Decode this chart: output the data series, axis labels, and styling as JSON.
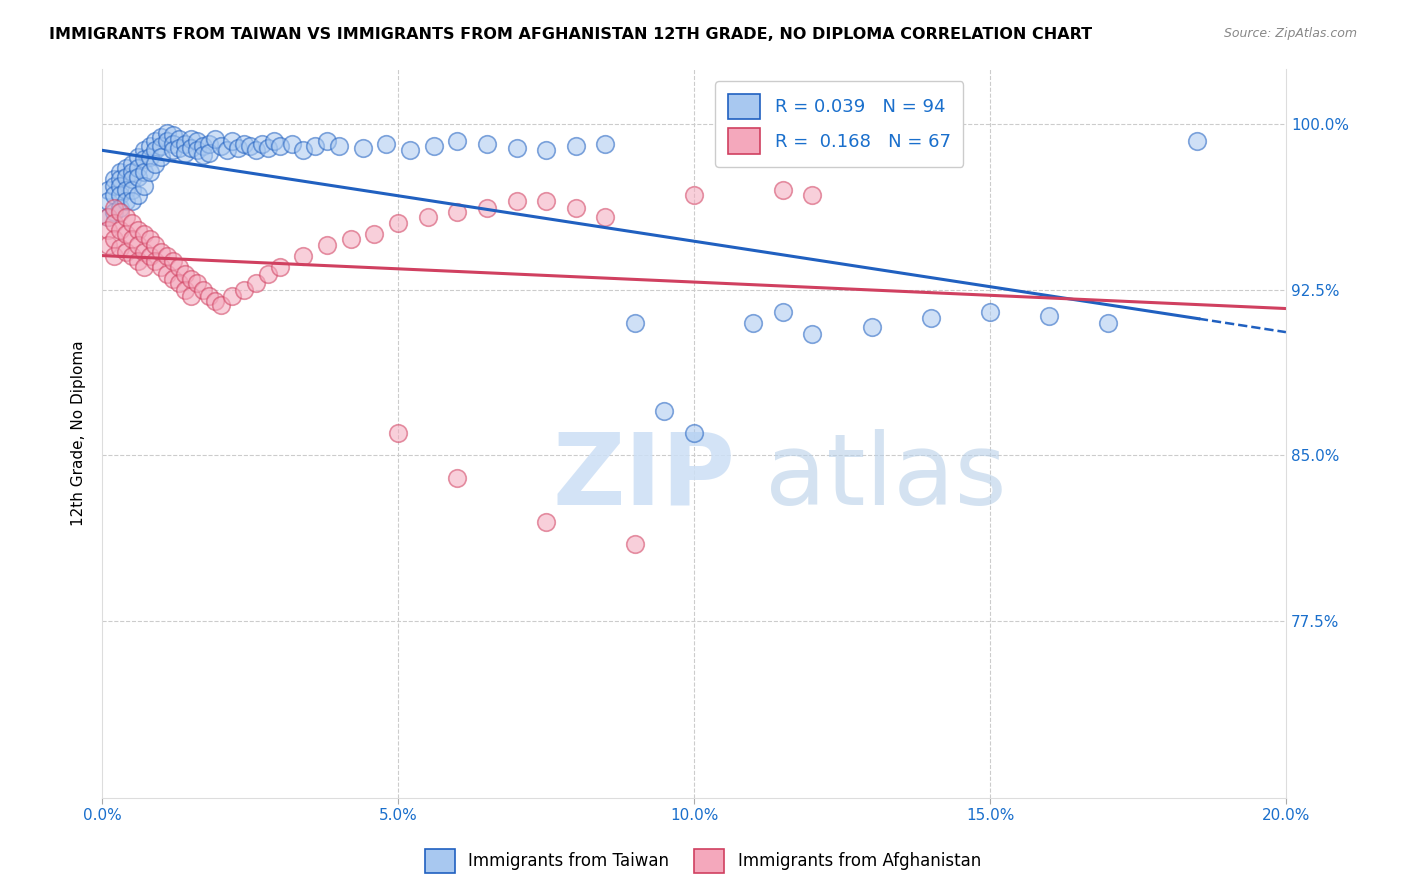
{
  "title": "IMMIGRANTS FROM TAIWAN VS IMMIGRANTS FROM AFGHANISTAN 12TH GRADE, NO DIPLOMA CORRELATION CHART",
  "source": "Source: ZipAtlas.com",
  "ylabel": "12th Grade, No Diploma",
  "y_tick_labels": [
    "100.0%",
    "92.5%",
    "85.0%",
    "77.5%"
  ],
  "y_tick_values": [
    1.0,
    0.925,
    0.85,
    0.775
  ],
  "x_tick_values": [
    0.0,
    0.05,
    0.1,
    0.15,
    0.2
  ],
  "xlim": [
    0.0,
    0.2
  ],
  "ylim": [
    0.695,
    1.025
  ],
  "taiwan_color": "#a8c8f0",
  "afghanistan_color": "#f4a8bc",
  "taiwan_line_color": "#2060c0",
  "afghanistan_line_color": "#d04060",
  "taiwan_R": 0.039,
  "taiwan_N": 94,
  "afghanistan_R": 0.168,
  "afghanistan_N": 67,
  "legend_label_taiwan": "Immigrants from Taiwan",
  "legend_label_afghanistan": "Immigrants from Afghanistan",
  "watermark_zip": "ZIP",
  "watermark_atlas": "atlas",
  "taiwan_scatter_x": [
    0.001,
    0.001,
    0.001,
    0.002,
    0.002,
    0.002,
    0.002,
    0.003,
    0.003,
    0.003,
    0.003,
    0.003,
    0.004,
    0.004,
    0.004,
    0.004,
    0.005,
    0.005,
    0.005,
    0.005,
    0.005,
    0.006,
    0.006,
    0.006,
    0.006,
    0.007,
    0.007,
    0.007,
    0.007,
    0.008,
    0.008,
    0.008,
    0.009,
    0.009,
    0.009,
    0.01,
    0.01,
    0.01,
    0.011,
    0.011,
    0.012,
    0.012,
    0.012,
    0.013,
    0.013,
    0.014,
    0.014,
    0.015,
    0.015,
    0.016,
    0.016,
    0.017,
    0.017,
    0.018,
    0.018,
    0.019,
    0.02,
    0.021,
    0.022,
    0.023,
    0.024,
    0.025,
    0.026,
    0.027,
    0.028,
    0.029,
    0.03,
    0.032,
    0.034,
    0.036,
    0.038,
    0.04,
    0.044,
    0.048,
    0.052,
    0.056,
    0.06,
    0.065,
    0.07,
    0.075,
    0.08,
    0.085,
    0.09,
    0.095,
    0.1,
    0.11,
    0.115,
    0.12,
    0.13,
    0.14,
    0.15,
    0.16,
    0.17,
    0.185
  ],
  "taiwan_scatter_y": [
    0.97,
    0.965,
    0.958,
    0.975,
    0.972,
    0.968,
    0.96,
    0.978,
    0.975,
    0.972,
    0.968,
    0.962,
    0.98,
    0.976,
    0.97,
    0.965,
    0.982,
    0.978,
    0.975,
    0.97,
    0.965,
    0.985,
    0.98,
    0.976,
    0.968,
    0.988,
    0.984,
    0.978,
    0.972,
    0.99,
    0.985,
    0.978,
    0.992,
    0.988,
    0.982,
    0.994,
    0.99,
    0.985,
    0.996,
    0.992,
    0.995,
    0.991,
    0.988,
    0.993,
    0.989,
    0.991,
    0.987,
    0.993,
    0.989,
    0.992,
    0.988,
    0.99,
    0.986,
    0.991,
    0.987,
    0.993,
    0.99,
    0.988,
    0.992,
    0.989,
    0.991,
    0.99,
    0.988,
    0.991,
    0.989,
    0.992,
    0.99,
    0.991,
    0.988,
    0.99,
    0.992,
    0.99,
    0.989,
    0.991,
    0.988,
    0.99,
    0.992,
    0.991,
    0.989,
    0.988,
    0.99,
    0.991,
    0.91,
    0.87,
    0.86,
    0.91,
    0.915,
    0.905,
    0.908,
    0.912,
    0.915,
    0.913,
    0.91,
    0.992
  ],
  "afghanistan_scatter_x": [
    0.001,
    0.001,
    0.001,
    0.002,
    0.002,
    0.002,
    0.002,
    0.003,
    0.003,
    0.003,
    0.004,
    0.004,
    0.004,
    0.005,
    0.005,
    0.005,
    0.006,
    0.006,
    0.006,
    0.007,
    0.007,
    0.007,
    0.008,
    0.008,
    0.009,
    0.009,
    0.01,
    0.01,
    0.011,
    0.011,
    0.012,
    0.012,
    0.013,
    0.013,
    0.014,
    0.014,
    0.015,
    0.015,
    0.016,
    0.017,
    0.018,
    0.019,
    0.02,
    0.022,
    0.024,
    0.026,
    0.028,
    0.03,
    0.034,
    0.038,
    0.042,
    0.046,
    0.05,
    0.055,
    0.06,
    0.065,
    0.07,
    0.075,
    0.08,
    0.085,
    0.1,
    0.115,
    0.12,
    0.05,
    0.06,
    0.075,
    0.09
  ],
  "afghanistan_scatter_y": [
    0.958,
    0.952,
    0.945,
    0.962,
    0.955,
    0.948,
    0.94,
    0.96,
    0.952,
    0.944,
    0.958,
    0.95,
    0.942,
    0.955,
    0.948,
    0.94,
    0.952,
    0.945,
    0.938,
    0.95,
    0.942,
    0.935,
    0.948,
    0.94,
    0.945,
    0.938,
    0.942,
    0.935,
    0.94,
    0.932,
    0.938,
    0.93,
    0.935,
    0.928,
    0.932,
    0.925,
    0.93,
    0.922,
    0.928,
    0.925,
    0.922,
    0.92,
    0.918,
    0.922,
    0.925,
    0.928,
    0.932,
    0.935,
    0.94,
    0.945,
    0.948,
    0.95,
    0.955,
    0.958,
    0.96,
    0.962,
    0.965,
    0.965,
    0.962,
    0.958,
    0.968,
    0.97,
    0.968,
    0.86,
    0.84,
    0.82,
    0.81
  ]
}
